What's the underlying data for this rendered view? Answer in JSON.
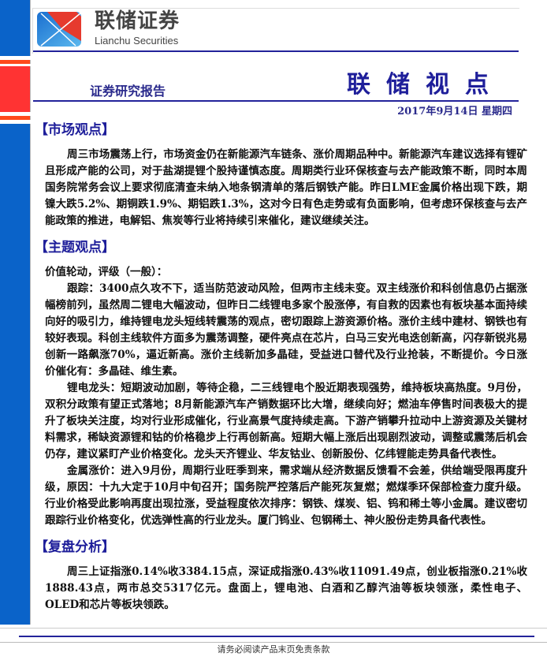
{
  "header": {
    "brand_cn": "联储证券",
    "brand_en": "Lianchu Securities",
    "report_type": "证券研究报告",
    "title": "联储视点",
    "date": "2017年9月14日 星期四",
    "colors": {
      "blue": "#0a63c9",
      "red": "#ff3333",
      "orange": "#ff4a1c",
      "navy": "#1e1e9a"
    }
  },
  "sections": {
    "market": {
      "heading": "【市场观点】",
      "paragraph": "周三市场震荡上行，市场资金仍在新能源汽车链条、涨价周期品种中。新能源汽车建议选择有锂矿且形成产能的公司，对于盐湖提锂个股持谨慎态度。周期类行业环保核查与去产能政策不断，同时本周国务院常务会议上要求彻底清查未纳入地条钢清单的落后钢铁产能。昨日LME金属价格出现下跌，期镍大跌5.2%、期铜跌1.9%、期铝跌1.3%，这对今日有色走势或有负面影响，但考虑环保核查与去产能政策的推进，电解铝、焦炭等行业将持续引来催化，建议继续关注。"
    },
    "theme": {
      "heading": "【主题观点】",
      "intro": "价值轮动，评级（一般）：",
      "paragraphs": [
        "跟踪：3400点久攻不下，适当防范波动风险，但两市主线未变。双主线涨价和科创信息仍占据涨幅榜前列，虽然周二锂电大幅波动，但昨日二线锂电多家个股涨停，有自救的因素也有板块基本面持续向好的吸引力，维持锂电龙头短线转震荡的观点，密切跟踪上游资源价格。涨价主线中建材、钢铁也有较好表现。科创主线软件方面多为震荡调整，硬件亮点在芯片，白马三安光电迭创新高，闪存新锐兆易创新一路飙涨70%，逼近新高。涨价主线新加多晶硅，受益进口替代及行业抢装，不断提价。今日涨价催化有：多晶硅、维生素。",
        "锂电龙头：短期波动加剧，等待企稳，二三线锂电个股近期表现强势，维持板块高热度。9月份，双积分政策有望正式落地；8月新能源汽车产销数据环比大增，继续向好；燃油车停售时间表极大的提升了板块关注度，均对行业形成催化，行业高景气度持续走高。下游产销攀升拉动中上游资源及关键材料需求，稀缺资源锂和钴的价格稳步上行再创新高。短期大幅上涨后出现剧烈波动，调整或震荡后机会仍存，建议紧盯产业价格变化。龙头天齐锂业、华友钴业、创新股份、亿纬锂能走势具备代表性。",
        "金属涨价：进入9月份，周期行业旺季到来，需求端从经济数据反馈看不会差，供给端受限再度升级，原因：十九大定于10月中旬召开；国务院严控落后产能死灰复燃；燃煤季环保部检查力度升级。行业价格受此影响再度出现拉涨，受益程度依次排序：钢铁、煤炭、铝、钨和稀土等小金属。建议密切跟踪行业价格变化，优选弹性高的行业龙头。厦门钨业、包钢稀土、神火股份走势具备代表性。"
      ]
    },
    "review": {
      "heading": "【复盘分析】",
      "paragraph": "周三上证指涨0.14%收3384.15点，深证成指涨0.43%收11091.49点，创业板指涨0.21%收1888.43点，两市总交5317亿元。盘面上，锂电池、白酒和乙醇汽油等板块领涨，柔性电子、OLED和芯片等板块领跌。"
    }
  },
  "footer": {
    "disclaimer": "请务必阅读产品末页免责条款"
  }
}
